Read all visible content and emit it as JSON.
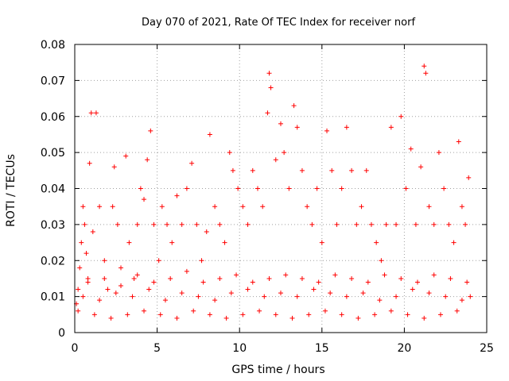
{
  "chart_data": {
    "type": "scatter",
    "title": "Day 070 of 2021, Rate Of TEC Index for receiver norf",
    "xlabel": "GPS time / hours",
    "ylabel": "ROTI / TECUs",
    "xlim": [
      0,
      25
    ],
    "ylim": [
      0,
      0.08
    ],
    "xticks": [
      0,
      5,
      10,
      15,
      20,
      25
    ],
    "xtick_labels": [
      "0",
      "5",
      "10",
      "15",
      "20",
      "25"
    ],
    "yticks": [
      0,
      0.01,
      0.02,
      0.03,
      0.04,
      0.05,
      0.06,
      0.07,
      0.08
    ],
    "ytick_labels": [
      "0",
      "0.01",
      "0.02",
      "0.03",
      "0.04",
      "0.05",
      "0.06",
      "0.07",
      "0.08"
    ],
    "grid": true,
    "marker": "+",
    "color": "#ff0000",
    "series": [
      {
        "name": "ROTI",
        "points": [
          [
            0.1,
            0.008
          ],
          [
            0.2,
            0.012
          ],
          [
            0.3,
            0.018
          ],
          [
            0.4,
            0.025
          ],
          [
            0.5,
            0.035
          ],
          [
            0.6,
            0.03
          ],
          [
            0.7,
            0.022
          ],
          [
            0.8,
            0.015
          ],
          [
            0.9,
            0.047
          ],
          [
            1.0,
            0.061
          ],
          [
            1.3,
            0.061
          ],
          [
            1.1,
            0.028
          ],
          [
            1.5,
            0.035
          ],
          [
            1.8,
            0.02
          ],
          [
            2.0,
            0.012
          ],
          [
            2.3,
            0.035
          ],
          [
            2.4,
            0.046
          ],
          [
            2.6,
            0.03
          ],
          [
            2.8,
            0.018
          ],
          [
            3.1,
            0.049
          ],
          [
            3.3,
            0.025
          ],
          [
            3.6,
            0.015
          ],
          [
            3.8,
            0.03
          ],
          [
            4.0,
            0.04
          ],
          [
            4.2,
            0.037
          ],
          [
            4.4,
            0.048
          ],
          [
            4.6,
            0.056
          ],
          [
            4.8,
            0.03
          ],
          [
            5.1,
            0.02
          ],
          [
            5.3,
            0.035
          ],
          [
            5.6,
            0.03
          ],
          [
            5.9,
            0.025
          ],
          [
            6.2,
            0.038
          ],
          [
            6.5,
            0.03
          ],
          [
            6.8,
            0.04
          ],
          [
            7.1,
            0.047
          ],
          [
            7.4,
            0.03
          ],
          [
            7.7,
            0.02
          ],
          [
            8.0,
            0.028
          ],
          [
            8.2,
            0.055
          ],
          [
            8.5,
            0.035
          ],
          [
            8.8,
            0.03
          ],
          [
            9.1,
            0.025
          ],
          [
            9.4,
            0.05
          ],
          [
            9.6,
            0.045
          ],
          [
            9.9,
            0.04
          ],
          [
            10.2,
            0.035
          ],
          [
            10.5,
            0.03
          ],
          [
            10.8,
            0.045
          ],
          [
            11.1,
            0.04
          ],
          [
            11.4,
            0.035
          ],
          [
            11.7,
            0.061
          ],
          [
            11.8,
            0.072
          ],
          [
            11.9,
            0.068
          ],
          [
            12.2,
            0.048
          ],
          [
            12.5,
            0.058
          ],
          [
            12.7,
            0.05
          ],
          [
            13.0,
            0.04
          ],
          [
            13.3,
            0.063
          ],
          [
            13.5,
            0.057
          ],
          [
            13.8,
            0.045
          ],
          [
            14.1,
            0.035
          ],
          [
            14.4,
            0.03
          ],
          [
            14.7,
            0.04
          ],
          [
            15.0,
            0.025
          ],
          [
            15.3,
            0.056
          ],
          [
            15.6,
            0.045
          ],
          [
            15.9,
            0.03
          ],
          [
            16.2,
            0.04
          ],
          [
            16.5,
            0.057
          ],
          [
            16.8,
            0.045
          ],
          [
            17.1,
            0.03
          ],
          [
            17.4,
            0.035
          ],
          [
            17.7,
            0.045
          ],
          [
            18.0,
            0.03
          ],
          [
            18.3,
            0.025
          ],
          [
            18.6,
            0.02
          ],
          [
            18.9,
            0.03
          ],
          [
            19.2,
            0.057
          ],
          [
            19.5,
            0.03
          ],
          [
            19.8,
            0.06
          ],
          [
            20.1,
            0.04
          ],
          [
            20.4,
            0.051
          ],
          [
            20.7,
            0.03
          ],
          [
            21.0,
            0.046
          ],
          [
            21.2,
            0.074
          ],
          [
            21.3,
            0.072
          ],
          [
            21.5,
            0.035
          ],
          [
            21.8,
            0.03
          ],
          [
            22.1,
            0.05
          ],
          [
            22.4,
            0.04
          ],
          [
            22.7,
            0.03
          ],
          [
            23.0,
            0.025
          ],
          [
            23.3,
            0.053
          ],
          [
            23.5,
            0.035
          ],
          [
            23.7,
            0.03
          ],
          [
            23.9,
            0.043
          ],
          [
            24.0,
            0.01
          ],
          [
            0.2,
            0.006
          ],
          [
            1.2,
            0.005
          ],
          [
            2.2,
            0.004
          ],
          [
            3.2,
            0.005
          ],
          [
            4.2,
            0.006
          ],
          [
            5.2,
            0.005
          ],
          [
            6.2,
            0.004
          ],
          [
            7.2,
            0.006
          ],
          [
            8.2,
            0.005
          ],
          [
            9.2,
            0.004
          ],
          [
            10.2,
            0.005
          ],
          [
            11.2,
            0.006
          ],
          [
            12.2,
            0.005
          ],
          [
            13.2,
            0.004
          ],
          [
            14.2,
            0.005
          ],
          [
            15.2,
            0.006
          ],
          [
            16.2,
            0.005
          ],
          [
            17.2,
            0.004
          ],
          [
            18.2,
            0.005
          ],
          [
            19.2,
            0.006
          ],
          [
            20.2,
            0.005
          ],
          [
            21.2,
            0.004
          ],
          [
            22.2,
            0.005
          ],
          [
            23.2,
            0.006
          ],
          [
            0.5,
            0.01
          ],
          [
            1.5,
            0.009
          ],
          [
            2.5,
            0.011
          ],
          [
            3.5,
            0.01
          ],
          [
            4.5,
            0.012
          ],
          [
            5.5,
            0.009
          ],
          [
            6.5,
            0.011
          ],
          [
            7.5,
            0.01
          ],
          [
            8.5,
            0.009
          ],
          [
            9.5,
            0.011
          ],
          [
            10.5,
            0.012
          ],
          [
            11.5,
            0.01
          ],
          [
            12.5,
            0.011
          ],
          [
            13.5,
            0.01
          ],
          [
            14.5,
            0.012
          ],
          [
            15.5,
            0.011
          ],
          [
            16.5,
            0.01
          ],
          [
            17.5,
            0.011
          ],
          [
            18.5,
            0.009
          ],
          [
            19.5,
            0.01
          ],
          [
            20.5,
            0.012
          ],
          [
            21.5,
            0.011
          ],
          [
            22.5,
            0.01
          ],
          [
            23.5,
            0.009
          ],
          [
            0.8,
            0.014
          ],
          [
            1.8,
            0.015
          ],
          [
            2.8,
            0.013
          ],
          [
            3.8,
            0.016
          ],
          [
            4.8,
            0.014
          ],
          [
            5.8,
            0.015
          ],
          [
            6.8,
            0.017
          ],
          [
            7.8,
            0.014
          ],
          [
            8.8,
            0.015
          ],
          [
            9.8,
            0.016
          ],
          [
            10.8,
            0.014
          ],
          [
            11.8,
            0.015
          ],
          [
            12.8,
            0.016
          ],
          [
            13.8,
            0.015
          ],
          [
            14.8,
            0.014
          ],
          [
            15.8,
            0.016
          ],
          [
            16.8,
            0.015
          ],
          [
            17.8,
            0.014
          ],
          [
            18.8,
            0.016
          ],
          [
            19.8,
            0.015
          ],
          [
            20.8,
            0.014
          ],
          [
            21.8,
            0.016
          ],
          [
            22.8,
            0.015
          ],
          [
            23.8,
            0.014
          ]
        ]
      }
    ]
  }
}
